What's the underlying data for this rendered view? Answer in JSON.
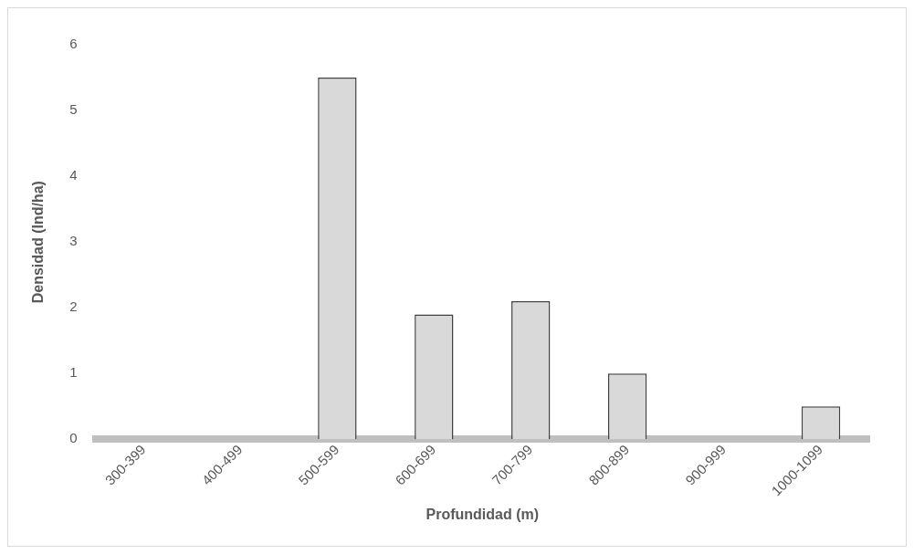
{
  "chart_data": {
    "type": "bar",
    "xlabel": "Profundidad (m)",
    "ylabel": "Densidad (Ind/ha)",
    "categories": [
      "300-399",
      "400-499",
      "500-599",
      "600-699",
      "700-799",
      "800-899",
      "900-999",
      "1000-1099"
    ],
    "values": [
      0,
      0,
      5.5,
      1.9,
      2.1,
      1.0,
      0,
      0.5
    ],
    "color": "#d9d9d9",
    "ylim": [
      0,
      6
    ],
    "yticks": [
      0,
      1,
      2,
      3,
      4,
      5,
      6
    ],
    "grid": false,
    "legend": false
  }
}
